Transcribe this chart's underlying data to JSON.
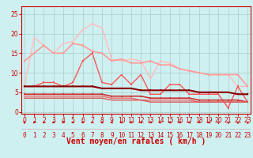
{
  "bg_color": "#cff0f0",
  "grid_color": "#aacccc",
  "xlabel": "Vent moyen/en rafales ( km/h )",
  "xlabel_color": "#cc0000",
  "xticks": [
    0,
    1,
    2,
    3,
    4,
    5,
    6,
    7,
    8,
    9,
    10,
    11,
    12,
    13,
    14,
    15,
    16,
    17,
    18,
    19,
    20,
    21,
    22,
    23
  ],
  "yticks": [
    0,
    5,
    10,
    15,
    20,
    25
  ],
  "ylim": [
    -0.5,
    27
  ],
  "xlim": [
    -0.3,
    23.3
  ],
  "series": [
    {
      "x": [
        0,
        1,
        2,
        3,
        4,
        5,
        6,
        7,
        8,
        9,
        10,
        11,
        12,
        13,
        14,
        15,
        16,
        17,
        18,
        19,
        20,
        21,
        22,
        23
      ],
      "y": [
        6.5,
        19.0,
        17.0,
        15.0,
        17.5,
        18.0,
        21.0,
        22.5,
        21.5,
        13.5,
        13.0,
        13.5,
        13.0,
        8.5,
        13.0,
        12.5,
        11.0,
        10.5,
        10.0,
        9.5,
        9.5,
        9.5,
        6.5,
        6.5
      ],
      "color": "#ffbbbb",
      "lw": 1.0,
      "marker": "s",
      "ms": 2.0
    },
    {
      "x": [
        0,
        1,
        2,
        3,
        4,
        5,
        6,
        7,
        8,
        9,
        10,
        11,
        12,
        13,
        14,
        15,
        16,
        17,
        18,
        19,
        20,
        21,
        22,
        23
      ],
      "y": [
        13.0,
        15.0,
        17.0,
        15.0,
        15.0,
        17.5,
        17.0,
        15.5,
        15.0,
        13.0,
        13.5,
        12.5,
        12.5,
        13.0,
        12.0,
        12.0,
        11.0,
        10.5,
        10.0,
        9.5,
        9.5,
        9.5,
        9.5,
        6.5
      ],
      "color": "#ff9999",
      "lw": 1.2,
      "marker": "s",
      "ms": 2.0
    },
    {
      "x": [
        0,
        1,
        2,
        3,
        4,
        5,
        6,
        7,
        8,
        9,
        10,
        11,
        12,
        13,
        14,
        15,
        16,
        17,
        18,
        19,
        20,
        21,
        22,
        23
      ],
      "y": [
        6.5,
        6.5,
        7.5,
        7.5,
        6.5,
        7.5,
        13.0,
        15.0,
        7.5,
        7.0,
        9.5,
        7.0,
        9.5,
        4.5,
        4.5,
        7.0,
        7.0,
        4.5,
        4.5,
        4.5,
        4.5,
        1.0,
        6.5,
        2.5
      ],
      "color": "#ff5555",
      "lw": 1.0,
      "marker": "s",
      "ms": 2.0
    },
    {
      "x": [
        0,
        1,
        2,
        3,
        4,
        5,
        6,
        7,
        8,
        9,
        10,
        11,
        12,
        13,
        14,
        15,
        16,
        17,
        18,
        19,
        20,
        21,
        22,
        23
      ],
      "y": [
        6.5,
        6.5,
        6.5,
        6.5,
        6.5,
        6.5,
        6.5,
        6.5,
        6.0,
        6.0,
        6.0,
        6.0,
        5.5,
        5.5,
        5.5,
        5.5,
        5.5,
        5.5,
        5.0,
        5.0,
        5.0,
        5.0,
        4.5,
        4.5
      ],
      "color": "#880000",
      "lw": 1.5,
      "marker": "s",
      "ms": 1.8
    },
    {
      "x": [
        0,
        1,
        2,
        3,
        4,
        5,
        6,
        7,
        8,
        9,
        10,
        11,
        12,
        13,
        14,
        15,
        16,
        17,
        18,
        19,
        20,
        21,
        22,
        23
      ],
      "y": [
        4.5,
        4.5,
        4.5,
        4.5,
        4.5,
        4.5,
        4.5,
        4.5,
        4.5,
        4.0,
        4.0,
        4.0,
        4.0,
        3.5,
        3.5,
        3.5,
        3.5,
        3.5,
        3.0,
        3.0,
        3.0,
        3.0,
        3.0,
        2.5
      ],
      "color": "#cc3333",
      "lw": 1.2,
      "marker": "s",
      "ms": 1.8
    },
    {
      "x": [
        0,
        1,
        2,
        3,
        4,
        5,
        6,
        7,
        8,
        9,
        10,
        11,
        12,
        13,
        14,
        15,
        16,
        17,
        18,
        19,
        20,
        21,
        22,
        23
      ],
      "y": [
        4.0,
        4.0,
        4.0,
        4.0,
        4.0,
        4.0,
        4.0,
        4.0,
        4.0,
        3.5,
        3.5,
        3.5,
        3.0,
        3.0,
        3.0,
        3.0,
        3.0,
        3.0,
        2.5,
        2.5,
        2.5,
        2.5,
        2.5,
        2.5
      ],
      "color": "#ee6666",
      "lw": 1.0,
      "marker": null,
      "ms": 0
    },
    {
      "x": [
        0,
        1,
        2,
        3,
        4,
        5,
        6,
        7,
        8,
        9,
        10,
        11,
        12,
        13,
        14,
        15,
        16,
        17,
        18,
        19,
        20,
        21,
        22,
        23
      ],
      "y": [
        3.5,
        3.5,
        3.5,
        3.5,
        3.5,
        3.5,
        3.5,
        3.5,
        3.5,
        3.0,
        3.0,
        3.0,
        3.0,
        2.5,
        2.5,
        2.5,
        2.5,
        2.5,
        2.5,
        2.5,
        2.5,
        2.5,
        2.5,
        2.5
      ],
      "color": "#dd5555",
      "lw": 1.0,
      "marker": null,
      "ms": 0
    }
  ],
  "arrows": {
    "angles": [
      180,
      225,
      225,
      240,
      245,
      250,
      240,
      250,
      255,
      255,
      255,
      255,
      255,
      255,
      260,
      255,
      250,
      255,
      250,
      255,
      310,
      315,
      315,
      315
    ],
    "color": "#cc0000"
  },
  "tick_color": "#cc0000",
  "tick_fontsize": 5.5
}
